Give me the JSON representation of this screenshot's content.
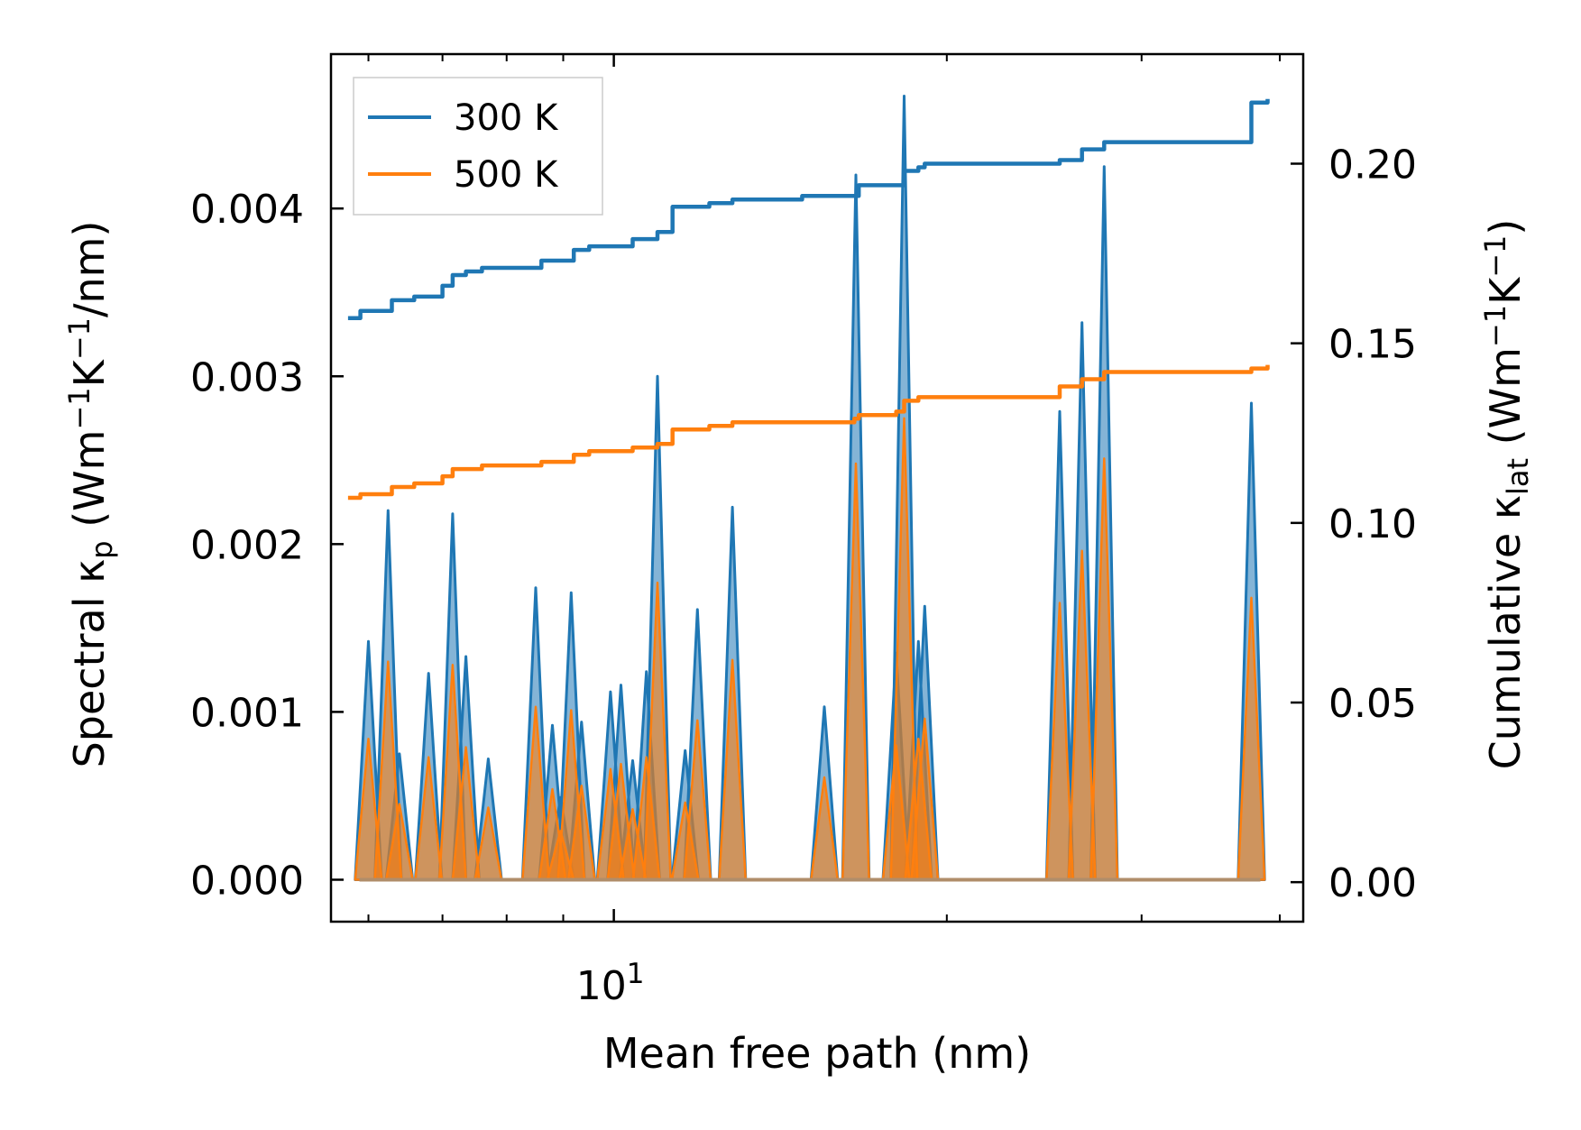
{
  "chart_data": {
    "type": "line",
    "title": "",
    "xlabel": "Mean free path (nm)",
    "ylabel_left": "Spectral κp (Wm−1K−1/nm)",
    "ylabel_right": "Cumulative κlat (Wm−1K−1)",
    "xscale": "log",
    "xlim": [
      5.55,
      42.0
    ],
    "ylim_left": [
      -0.00025,
      0.00492
    ],
    "ylim_right": [
      -0.011,
      0.2305
    ],
    "x_tick_label": "10^1",
    "left_ticks": [
      {
        "value": 0.0,
        "label": "0.000"
      },
      {
        "value": 0.001,
        "label": "0.001"
      },
      {
        "value": 0.002,
        "label": "0.002"
      },
      {
        "value": 0.003,
        "label": "0.003"
      },
      {
        "value": 0.004,
        "label": "0.004"
      }
    ],
    "right_ticks": [
      {
        "value": 0.0,
        "label": "0.00"
      },
      {
        "value": 0.05,
        "label": "0.05"
      },
      {
        "value": 0.1,
        "label": "0.10"
      },
      {
        "value": 0.15,
        "label": "0.15"
      },
      {
        "value": 0.2,
        "label": "0.20"
      }
    ],
    "legend": {
      "position": "top-left",
      "entries": [
        {
          "label": "300 K",
          "color": "#1f77b4"
        },
        {
          "label": "500 K",
          "color": "#ff7f0e"
        }
      ]
    },
    "spectral_series": [
      {
        "name": "300 K",
        "color": "#1f77b4",
        "peaks": [
          [
            6.0,
            0.00142
          ],
          [
            6.25,
            0.0022
          ],
          [
            6.4,
            0.00075
          ],
          [
            6.8,
            0.00123
          ],
          [
            7.15,
            0.00218
          ],
          [
            7.35,
            0.00133
          ],
          [
            7.7,
            0.00072
          ],
          [
            8.5,
            0.00174
          ],
          [
            8.8,
            0.00092
          ],
          [
            8.95,
            0.00049
          ],
          [
            9.15,
            0.00171
          ],
          [
            9.35,
            0.00094
          ],
          [
            9.93,
            0.00112
          ],
          [
            10.15,
            0.00116
          ],
          [
            10.4,
            0.00071
          ],
          [
            10.7,
            0.00124
          ],
          [
            10.95,
            0.003
          ],
          [
            11.6,
            0.00077
          ],
          [
            11.9,
            0.00161
          ],
          [
            12.8,
            0.00222
          ],
          [
            15.5,
            0.00103
          ],
          [
            16.55,
            0.0042
          ],
          [
            18.0,
            0.00135
          ],
          [
            18.3,
            0.00467
          ],
          [
            18.85,
            0.00142
          ],
          [
            19.1,
            0.00163
          ],
          [
            25.3,
            0.00279
          ],
          [
            26.5,
            0.00332
          ],
          [
            27.75,
            0.00425
          ],
          [
            37.7,
            0.00284
          ]
        ]
      },
      {
        "name": "500 K",
        "color": "#ff7f0e",
        "peaks": [
          [
            6.0,
            0.00084
          ],
          [
            6.25,
            0.0013
          ],
          [
            6.4,
            0.00045
          ],
          [
            6.8,
            0.00073
          ],
          [
            7.15,
            0.00128
          ],
          [
            7.35,
            0.00079
          ],
          [
            7.7,
            0.00043
          ],
          [
            8.5,
            0.00103
          ],
          [
            8.8,
            0.00054
          ],
          [
            8.95,
            0.00029
          ],
          [
            9.15,
            0.00101
          ],
          [
            9.35,
            0.00056
          ],
          [
            9.93,
            0.00066
          ],
          [
            10.15,
            0.00069
          ],
          [
            10.4,
            0.00042
          ],
          [
            10.7,
            0.00073
          ],
          [
            10.95,
            0.00177
          ],
          [
            11.6,
            0.00046
          ],
          [
            11.9,
            0.00095
          ],
          [
            12.8,
            0.00131
          ],
          [
            15.5,
            0.00061
          ],
          [
            16.55,
            0.00248
          ],
          [
            18.0,
            0.0008
          ],
          [
            18.3,
            0.00275
          ],
          [
            18.85,
            0.00084
          ],
          [
            19.1,
            0.00096
          ],
          [
            25.3,
            0.00165
          ],
          [
            26.5,
            0.00196
          ],
          [
            27.75,
            0.00251
          ],
          [
            37.7,
            0.00168
          ]
        ]
      }
    ],
    "cumulative_series": [
      {
        "name": "300 K",
        "color": "#1f77b4",
        "points": [
          [
            5.75,
            0.157
          ],
          [
            5.9,
            0.159
          ],
          [
            6.1,
            0.159
          ],
          [
            6.3,
            0.162
          ],
          [
            6.6,
            0.163
          ],
          [
            6.8,
            0.163
          ],
          [
            7.0,
            0.166
          ],
          [
            7.15,
            0.169
          ],
          [
            7.35,
            0.17
          ],
          [
            7.6,
            0.171
          ],
          [
            8.2,
            0.171
          ],
          [
            8.6,
            0.173
          ],
          [
            9.2,
            0.176
          ],
          [
            9.5,
            0.177
          ],
          [
            9.8,
            0.177
          ],
          [
            10.4,
            0.179
          ],
          [
            10.95,
            0.181
          ],
          [
            11.3,
            0.188
          ],
          [
            11.8,
            0.188
          ],
          [
            12.2,
            0.189
          ],
          [
            12.8,
            0.19
          ],
          [
            14.8,
            0.191
          ],
          [
            16.5,
            0.191
          ],
          [
            16.65,
            0.194
          ],
          [
            18.0,
            0.194
          ],
          [
            18.3,
            0.198
          ],
          [
            18.85,
            0.199
          ],
          [
            19.1,
            0.2
          ],
          [
            25.3,
            0.201
          ],
          [
            26.5,
            0.204
          ],
          [
            27.75,
            0.206
          ],
          [
            37.7,
            0.217
          ],
          [
            39.0,
            0.218
          ]
        ]
      },
      {
        "name": "500 K",
        "color": "#ff7f0e",
        "points": [
          [
            5.75,
            0.107
          ],
          [
            5.9,
            0.108
          ],
          [
            6.1,
            0.108
          ],
          [
            6.3,
            0.11
          ],
          [
            6.6,
            0.111
          ],
          [
            6.8,
            0.111
          ],
          [
            7.0,
            0.113
          ],
          [
            7.15,
            0.115
          ],
          [
            7.35,
            0.115
          ],
          [
            7.6,
            0.116
          ],
          [
            8.2,
            0.116
          ],
          [
            8.6,
            0.117
          ],
          [
            9.2,
            0.119
          ],
          [
            9.5,
            0.12
          ],
          [
            9.8,
            0.12
          ],
          [
            10.4,
            0.121
          ],
          [
            10.95,
            0.122
          ],
          [
            11.3,
            0.126
          ],
          [
            11.8,
            0.126
          ],
          [
            12.2,
            0.127
          ],
          [
            12.8,
            0.128
          ],
          [
            14.8,
            0.128
          ],
          [
            16.5,
            0.129
          ],
          [
            16.65,
            0.13
          ],
          [
            18.0,
            0.131
          ],
          [
            18.3,
            0.134
          ],
          [
            18.85,
            0.135
          ],
          [
            19.1,
            0.135
          ],
          [
            25.3,
            0.138
          ],
          [
            26.5,
            0.14
          ],
          [
            27.75,
            0.142
          ],
          [
            37.7,
            0.143
          ],
          [
            39.0,
            0.144
          ]
        ]
      }
    ]
  }
}
